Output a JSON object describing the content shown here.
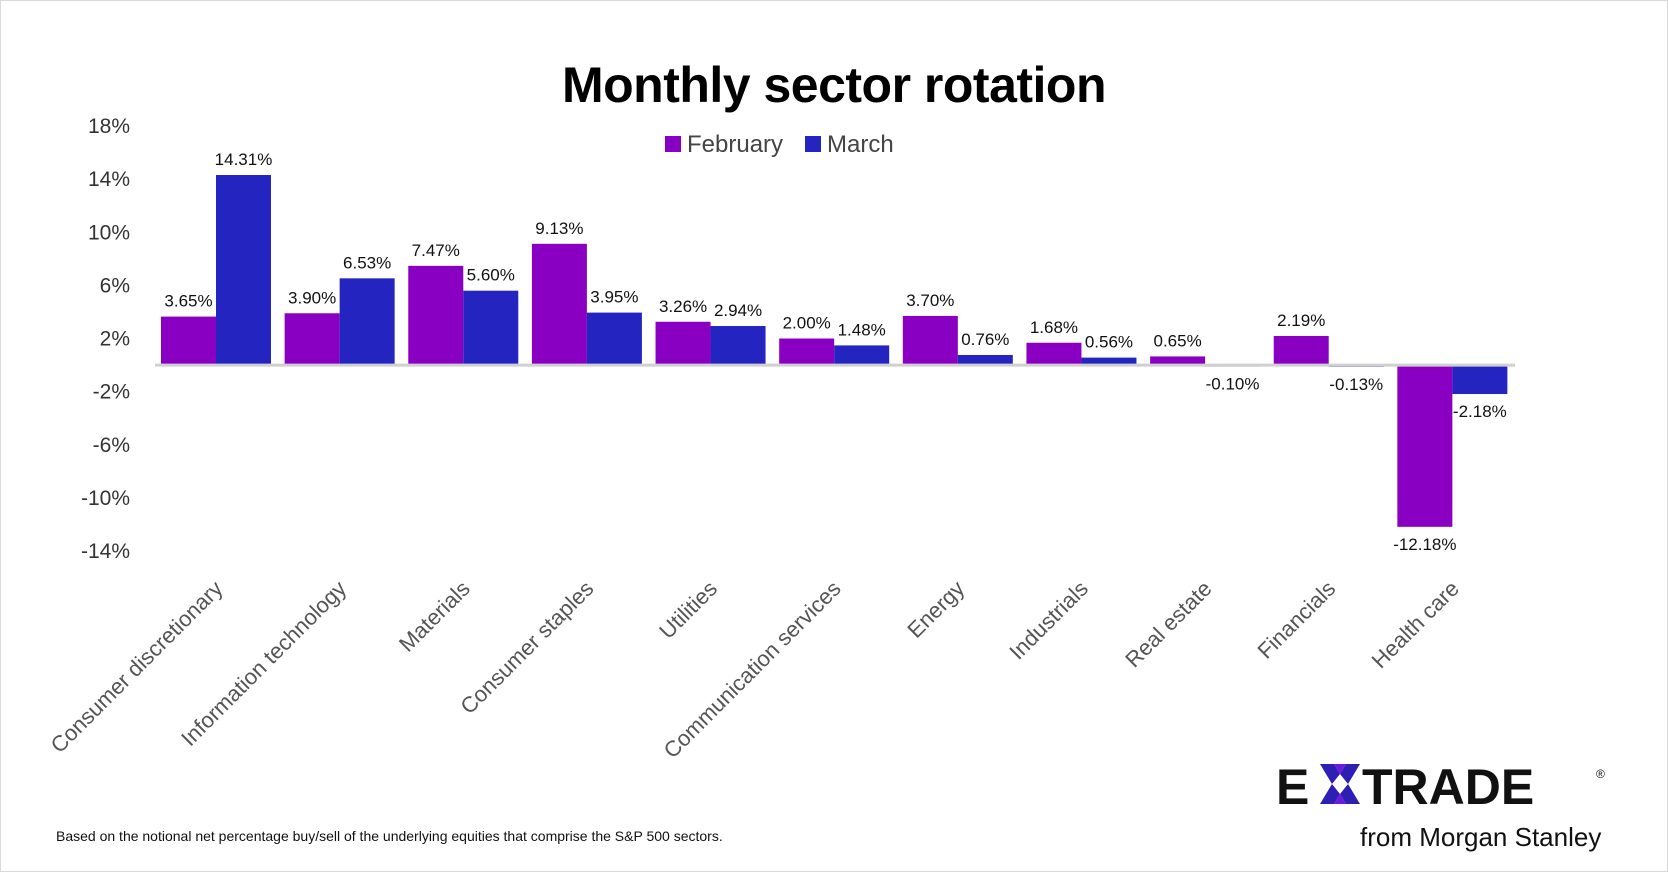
{
  "chart_data": {
    "type": "bar",
    "title": "Monthly sector rotation",
    "categories": [
      "Consumer discretionary",
      "Information technology",
      "Materials",
      "Consumer staples",
      "Utilities",
      "Communication services",
      "Energy",
      "Industrials",
      "Real estate",
      "Financials",
      "Health care"
    ],
    "series": [
      {
        "name": "February",
        "color": "#8a00c2",
        "values": [
          3.65,
          3.9,
          7.47,
          9.13,
          3.26,
          2.0,
          3.7,
          1.68,
          0.65,
          2.19,
          -12.18
        ],
        "labels": [
          "3.65%",
          "3.90%",
          "7.47%",
          "9.13%",
          "3.26%",
          "2.00%",
          "3.70%",
          "1.68%",
          "0.65%",
          "2.19%",
          "-12.18%"
        ]
      },
      {
        "name": "March",
        "color": "#2424c0",
        "values": [
          14.31,
          6.53,
          5.6,
          3.95,
          2.94,
          1.48,
          0.76,
          0.56,
          -0.1,
          -0.13,
          -2.18
        ],
        "labels": [
          "14.31%",
          "6.53%",
          "5.60%",
          "3.95%",
          "2.94%",
          "1.48%",
          "0.76%",
          "0.56%",
          "-0.10%",
          "-0.13%",
          "-2.18%"
        ]
      }
    ],
    "yticks": [
      18,
      14,
      10,
      6,
      2,
      -2,
      -6,
      -10,
      -14
    ],
    "ytick_labels": [
      "18%",
      "14%",
      "10%",
      "6%",
      "2%",
      "-2%",
      "-6%",
      "-10%",
      "-14%"
    ],
    "ylim": [
      -14,
      18
    ],
    "xlabel": "",
    "ylabel": "",
    "grid": false,
    "legend_position": "top-center"
  },
  "footnote": "Based on the notional net percentage buy/sell of the underlying equities that comprise the S&P 500 sectors.",
  "logo": {
    "name": "E*TRADE",
    "wordmark": "E✱TRADE",
    "sub": "from Morgan Stanley",
    "registered": "®"
  }
}
